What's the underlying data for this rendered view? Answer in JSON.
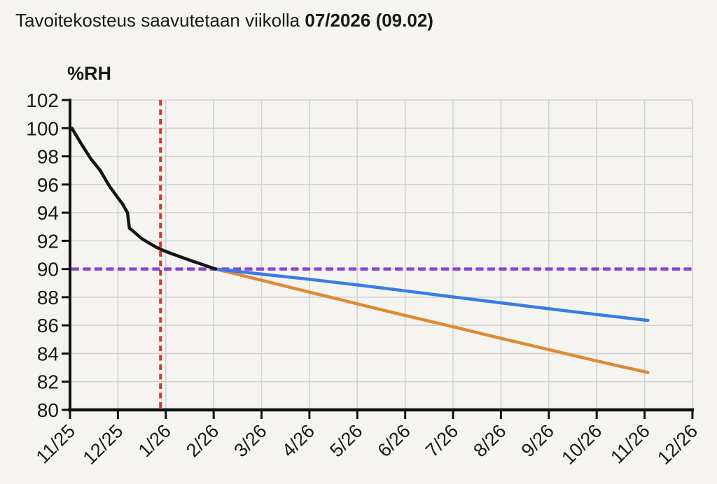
{
  "title": {
    "prefix": "Tavoitekosteus saavutetaan viikolla ",
    "highlight": "07/2026 (09.02)"
  },
  "chart_data": {
    "type": "line",
    "title": "Tavoitekosteus saavutetaan viikolla 07/2026 (09.02)",
    "ylabel": "%RH",
    "xlabel": "",
    "ylim": [
      80,
      102
    ],
    "y_ticks": [
      80,
      82,
      84,
      86,
      88,
      90,
      92,
      94,
      96,
      98,
      100,
      102
    ],
    "categories": [
      "11/25",
      "12/25",
      "1/26",
      "2/26",
      "3/26",
      "4/26",
      "5/26",
      "6/26",
      "7/26",
      "8/26",
      "9/26",
      "10/26",
      "11/26",
      "12/26"
    ],
    "grid": true,
    "legend": "none",
    "target_line": {
      "value": 90,
      "color": "#8d3fd6",
      "style": "dashed"
    },
    "current_week_line": {
      "x_month_index": 1.89,
      "color": "#c93a30",
      "style": "dashed"
    },
    "series": [
      {
        "name": "forecast-orange",
        "color": "#de8a35",
        "points": [
          [
            3.04,
            90.0
          ],
          [
            4,
            89.2
          ],
          [
            5,
            88.36
          ],
          [
            6,
            87.53
          ],
          [
            7,
            86.7
          ],
          [
            8,
            85.9
          ],
          [
            9,
            85.08
          ],
          [
            10,
            84.28
          ],
          [
            11,
            83.47
          ],
          [
            12.07,
            82.65
          ]
        ]
      },
      {
        "name": "forecast-blue",
        "color": "#3b7ce3",
        "points": [
          [
            3.04,
            90.0
          ],
          [
            4,
            89.64
          ],
          [
            5,
            89.27
          ],
          [
            6,
            88.87
          ],
          [
            7,
            88.45
          ],
          [
            8,
            88.02
          ],
          [
            9,
            87.6
          ],
          [
            10,
            87.18
          ],
          [
            11,
            86.77
          ],
          [
            12.07,
            86.35
          ]
        ]
      },
      {
        "name": "measured-drying-curve",
        "color": "#141414",
        "points": [
          [
            0.04,
            100.0
          ],
          [
            0.25,
            98.8
          ],
          [
            0.44,
            97.8
          ],
          [
            0.63,
            97.0
          ],
          [
            0.82,
            95.9
          ],
          [
            0.98,
            95.15
          ],
          [
            1.1,
            94.6
          ],
          [
            1.2,
            94.0
          ],
          [
            1.24,
            92.9
          ],
          [
            1.35,
            92.6
          ],
          [
            1.5,
            92.15
          ],
          [
            1.65,
            91.85
          ],
          [
            1.8,
            91.55
          ],
          [
            1.95,
            91.32
          ],
          [
            2.1,
            91.12
          ],
          [
            2.25,
            90.93
          ],
          [
            2.4,
            90.75
          ],
          [
            2.55,
            90.57
          ],
          [
            2.7,
            90.4
          ],
          [
            2.85,
            90.22
          ],
          [
            3.04,
            90.0
          ]
        ]
      }
    ],
    "colors": {
      "background": "#f5f4f1",
      "grid": "#d3d2cf",
      "axis": "#111111"
    }
  }
}
